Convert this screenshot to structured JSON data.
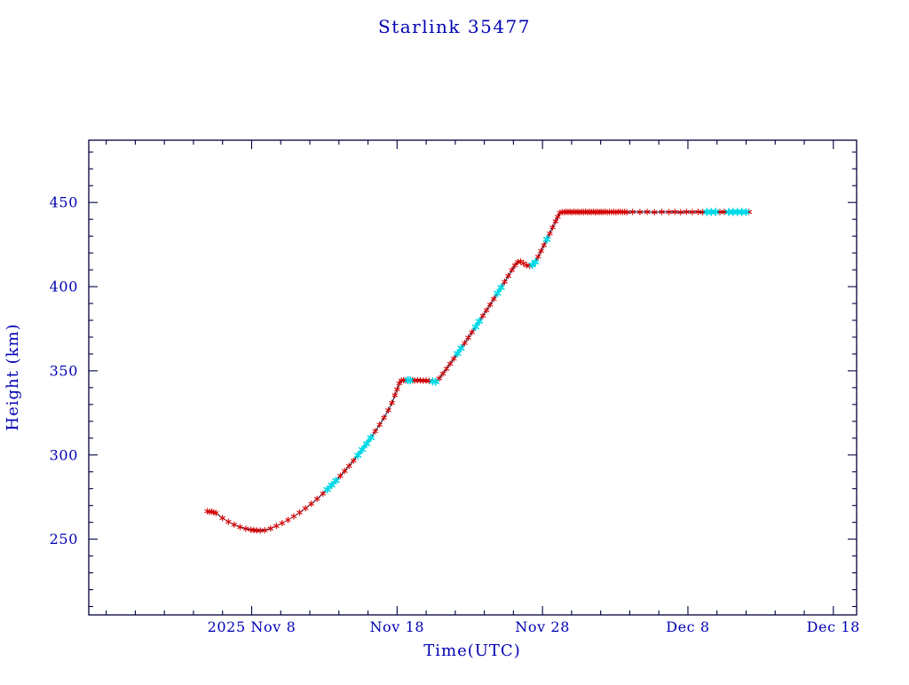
{
  "chart_data": {
    "type": "line",
    "title": "Starlink 35477",
    "xlabel": "Time(UTC)",
    "ylabel": "Height (km)",
    "x_unit": "days since 2025 Nov 0 (UTC)",
    "xlim": [
      -3.2,
      49.6
    ],
    "ylim": [
      205,
      487
    ],
    "x_ticks": [
      {
        "day": 8,
        "label": "2025 Nov  8"
      },
      {
        "day": 18,
        "label": "Nov 18"
      },
      {
        "day": 28,
        "label": "Nov 28"
      },
      {
        "day": 38,
        "label": "Dec  8"
      },
      {
        "day": 48,
        "label": "Dec 18"
      }
    ],
    "y_ticks": [
      250,
      300,
      350,
      400,
      450
    ],
    "x_minor_step": 2,
    "y_minor_step": 10,
    "grid": false,
    "legend": "none",
    "colors": {
      "frame": "#00003c",
      "text": "#0000b4",
      "line": "#0a0a3c",
      "marker": "#d40000",
      "highlight": "#00d9e6",
      "background": "#ffffff"
    },
    "marker_style": "asterisk",
    "points": [
      [
        4.95,
        266.6
      ],
      [
        5.1,
        266.2
      ],
      [
        5.25,
        266.4
      ],
      [
        5.4,
        265.9
      ],
      [
        5.55,
        265.5
      ],
      [
        6.0,
        262.5
      ],
      [
        6.4,
        260.3
      ],
      [
        6.8,
        258.6
      ],
      [
        7.2,
        257.2
      ],
      [
        7.6,
        256.2
      ],
      [
        7.95,
        255.6
      ],
      [
        8.15,
        255.3
      ],
      [
        8.35,
        255.2
      ],
      [
        8.6,
        255.1
      ],
      [
        8.9,
        255.3
      ],
      [
        9.3,
        256.3
      ],
      [
        9.7,
        257.8
      ],
      [
        10.1,
        259.5
      ],
      [
        10.5,
        261.4
      ],
      [
        10.9,
        263.5
      ],
      [
        11.3,
        265.8
      ],
      [
        11.7,
        268.3
      ],
      [
        12.1,
        271.0
      ],
      [
        12.5,
        273.9
      ],
      [
        12.9,
        277.0
      ],
      [
        13.2,
        279.5,
        "c"
      ],
      [
        13.5,
        282.1,
        "c"
      ],
      [
        13.8,
        284.8,
        "c"
      ],
      [
        14.1,
        287.6
      ],
      [
        14.4,
        290.5
      ],
      [
        14.7,
        293.5
      ],
      [
        15.0,
        296.6
      ],
      [
        15.3,
        299.8,
        "c"
      ],
      [
        15.6,
        303.2,
        "c"
      ],
      [
        15.9,
        306.7,
        "c"
      ],
      [
        16.2,
        310.3,
        "c"
      ],
      [
        16.5,
        314.1
      ],
      [
        16.8,
        318.0
      ],
      [
        17.1,
        322.2
      ],
      [
        17.4,
        326.6
      ],
      [
        17.65,
        331.0
      ],
      [
        17.85,
        335.5
      ],
      [
        18.0,
        339.0
      ],
      [
        18.15,
        342.5
      ],
      [
        18.3,
        344.2
      ],
      [
        18.45,
        344.4
      ],
      [
        18.6,
        344.3
      ],
      [
        18.75,
        344.5,
        "c"
      ],
      [
        18.9,
        344.3,
        "c"
      ],
      [
        19.05,
        344.4
      ],
      [
        19.2,
        344.2
      ],
      [
        19.4,
        344.4
      ],
      [
        19.6,
        344.3
      ],
      [
        19.8,
        344.1
      ],
      [
        20.0,
        344.3
      ],
      [
        20.2,
        344.0
      ],
      [
        20.45,
        343.7,
        "c"
      ],
      [
        20.65,
        343.5,
        "c"
      ],
      [
        20.9,
        345.5
      ],
      [
        21.15,
        348.3
      ],
      [
        21.4,
        351.2
      ],
      [
        21.65,
        354.2
      ],
      [
        21.9,
        357.2
      ],
      [
        22.15,
        360.3,
        "c"
      ],
      [
        22.4,
        363.4,
        "c"
      ],
      [
        22.65,
        366.5
      ],
      [
        22.9,
        369.7
      ],
      [
        23.15,
        372.9
      ],
      [
        23.4,
        376.1,
        "c"
      ],
      [
        23.65,
        379.4,
        "c"
      ],
      [
        23.9,
        382.7
      ],
      [
        24.15,
        386.0
      ],
      [
        24.4,
        389.3
      ],
      [
        24.65,
        392.7
      ],
      [
        24.9,
        396.1,
        "c"
      ],
      [
        25.15,
        399.5,
        "c"
      ],
      [
        25.4,
        402.9
      ],
      [
        25.65,
        406.4
      ],
      [
        25.9,
        409.9
      ],
      [
        26.1,
        412.6
      ],
      [
        26.3,
        414.6
      ],
      [
        26.5,
        414.9
      ],
      [
        26.7,
        413.8
      ],
      [
        26.9,
        412.7
      ],
      [
        27.1,
        412.3
      ],
      [
        27.3,
        412.9,
        "c"
      ],
      [
        27.5,
        414.6,
        "c"
      ],
      [
        27.7,
        417.8
      ],
      [
        27.9,
        421.2
      ],
      [
        28.1,
        424.6
      ],
      [
        28.3,
        428.1,
        "c"
      ],
      [
        28.5,
        431.6
      ],
      [
        28.7,
        435.2
      ],
      [
        28.9,
        438.8
      ],
      [
        29.05,
        441.5
      ],
      [
        29.2,
        443.8
      ],
      [
        29.35,
        444.3
      ],
      [
        29.5,
        444.2
      ],
      [
        29.63,
        444.5
      ],
      [
        29.76,
        444.3
      ],
      [
        29.9,
        444.4
      ],
      [
        30.03,
        444.2
      ],
      [
        30.16,
        444.5
      ],
      [
        30.3,
        444.3
      ],
      [
        30.43,
        444.4
      ],
      [
        30.56,
        444.2
      ],
      [
        30.7,
        444.4
      ],
      [
        30.83,
        444.3
      ],
      [
        30.96,
        444.5
      ],
      [
        31.1,
        444.2
      ],
      [
        31.23,
        444.4
      ],
      [
        31.36,
        444.3
      ],
      [
        31.5,
        444.5
      ],
      [
        31.63,
        444.2
      ],
      [
        31.76,
        444.4
      ],
      [
        31.9,
        444.3
      ],
      [
        32.03,
        444.4
      ],
      [
        32.16,
        444.3
      ],
      [
        32.3,
        444.5
      ],
      [
        32.45,
        444.2
      ],
      [
        32.6,
        444.4
      ],
      [
        32.75,
        444.3
      ],
      [
        32.9,
        444.4
      ],
      [
        33.05,
        444.2
      ],
      [
        33.2,
        444.4
      ],
      [
        33.35,
        444.5
      ],
      [
        33.5,
        444.3
      ],
      [
        33.65,
        444.4
      ],
      [
        33.8,
        444.2
      ],
      [
        34.2,
        444.4
      ],
      [
        34.7,
        444.3
      ],
      [
        35.2,
        444.4
      ],
      [
        35.7,
        444.2
      ],
      [
        36.2,
        444.4
      ],
      [
        36.7,
        444.3
      ],
      [
        37.1,
        444.4
      ],
      [
        37.5,
        444.2
      ],
      [
        37.9,
        444.4
      ],
      [
        38.3,
        444.3
      ],
      [
        38.7,
        444.4
      ],
      [
        39.0,
        444.2
      ],
      [
        39.3,
        444.4,
        "c"
      ],
      [
        39.6,
        444.3,
        "c"
      ],
      [
        39.9,
        444.4,
        "c"
      ],
      [
        40.2,
        444.3
      ],
      [
        40.5,
        444.4
      ],
      [
        40.8,
        444.3,
        "c"
      ],
      [
        41.1,
        444.4,
        "c"
      ],
      [
        41.4,
        444.3,
        "c"
      ],
      [
        41.7,
        444.4,
        "c"
      ],
      [
        42.0,
        444.3,
        "c"
      ],
      [
        42.2,
        444.4
      ]
    ]
  }
}
